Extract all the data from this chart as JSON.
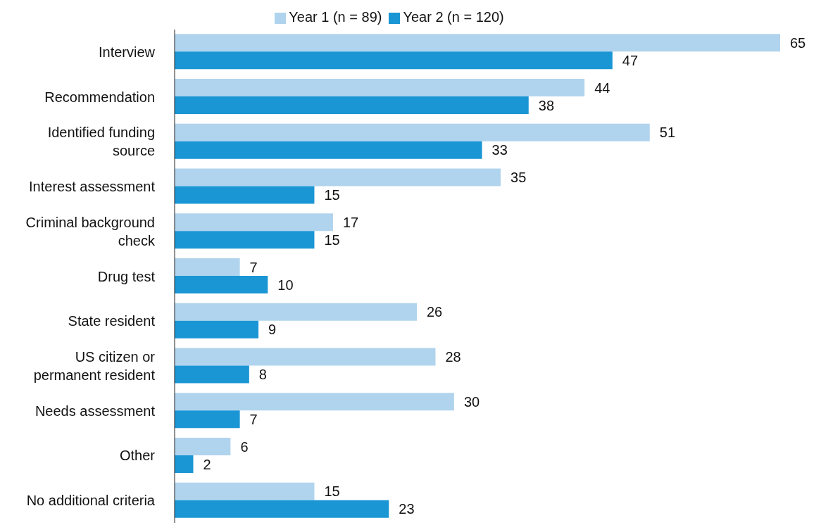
{
  "chart_data": {
    "type": "bar",
    "orientation": "horizontal",
    "categories": [
      "Interview",
      "Recommendation",
      "Identified funding source",
      "Interest assessment",
      "Criminal background check",
      "Drug test",
      "State resident",
      "US citizen or permanent resident",
      "Needs assessment",
      "Other",
      "No additional criteria"
    ],
    "series": [
      {
        "name": "Year 1 (n = 89)",
        "color": "#b0d4ee",
        "values": [
          65,
          44,
          51,
          35,
          17,
          7,
          26,
          28,
          30,
          6,
          15
        ]
      },
      {
        "name": "Year 2 (n = 120)",
        "color": "#1a96d4",
        "values": [
          47,
          38,
          33,
          15,
          15,
          10,
          9,
          8,
          7,
          2,
          23
        ]
      }
    ],
    "data_labels": true,
    "legend": "top",
    "grid": false
  }
}
